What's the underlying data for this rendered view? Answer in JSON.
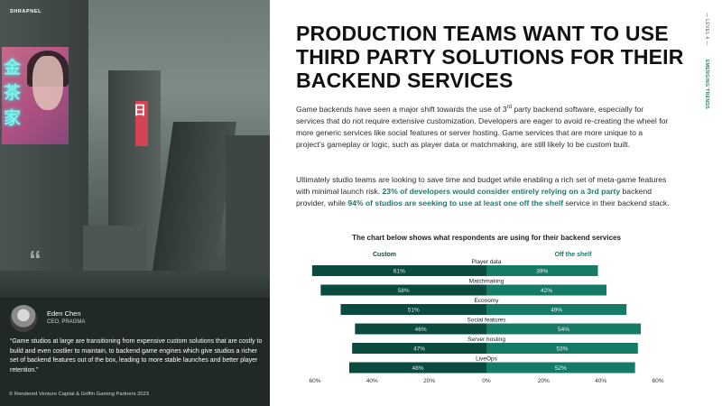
{
  "brand": "SHRAPNEL",
  "sidebar": {
    "level": "— LEVEL 4 —",
    "section": "EMERGING TRENDS"
  },
  "headline": "PRODUCTION TEAMS WANT TO USE THIRD PARTY SOLUTIONS FOR THEIR BACKEND SERVICES",
  "para1": {
    "pre": "Game backends have seen a major shift towards the use of 3",
    "sup": "rd",
    "post": " party backend software, especially for services that do not require extensive customization. Developers are eager to avoid re-creating the wheel for more generic services like social features or server hosting. Game services that are more unique to a project’s gameplay or logic, such as player data or matchmaking, are still likely to be custom built."
  },
  "para2": {
    "a": "Ultimately studio teams are looking to save time and budget while enabling a rich set of meta-game features with minimal launch risk. ",
    "b": "23% of developers would consider entirely relying on a 3rd party",
    "c": " backend provider, while ",
    "d": "94% of studios are seeking to use at least one off the shelf",
    "e": " service in their backend stack."
  },
  "image_panel": {
    "sign_text": [
      "金",
      "茶",
      "家"
    ],
    "red_sign_text": "日",
    "quote_glyph": "“",
    "person_name": "Eden Chen",
    "person_role": "CEO, PRAGMA",
    "quote": "“Game studios at large are transitioning from expensive custom solutions that are costly to build and even costlier to maintain, to backend game engines which give studios a richer set of backend features out of the box, leading to more stable launches and better player retention.”",
    "copyright": "© Rendered Venture Capital & Griffin Gaming Partners 2023"
  },
  "colors": {
    "dark_teal": "#0b4a3f",
    "teal": "#157a66",
    "accent_text": "#1f7a6b"
  },
  "chart_data": {
    "type": "bar",
    "title": "The chart below shows what respondents are using for their backend services",
    "series": [
      {
        "name": "Custom",
        "values": [
          61,
          58,
          51,
          46,
          47,
          48
        ]
      },
      {
        "name": "Off the shelf",
        "values": [
          39,
          42,
          49,
          54,
          53,
          52
        ]
      }
    ],
    "categories": [
      "Player data",
      "Matchmaking",
      "Economy",
      "Social features",
      "Server hosting",
      "LiveOps"
    ],
    "x_ticks": [
      "60%",
      "40%",
      "20%",
      "0%",
      "20%",
      "40%",
      "60%"
    ],
    "xlim": [
      -60,
      60
    ],
    "value_suffix": "%",
    "legend_position": "top",
    "grid": false
  }
}
